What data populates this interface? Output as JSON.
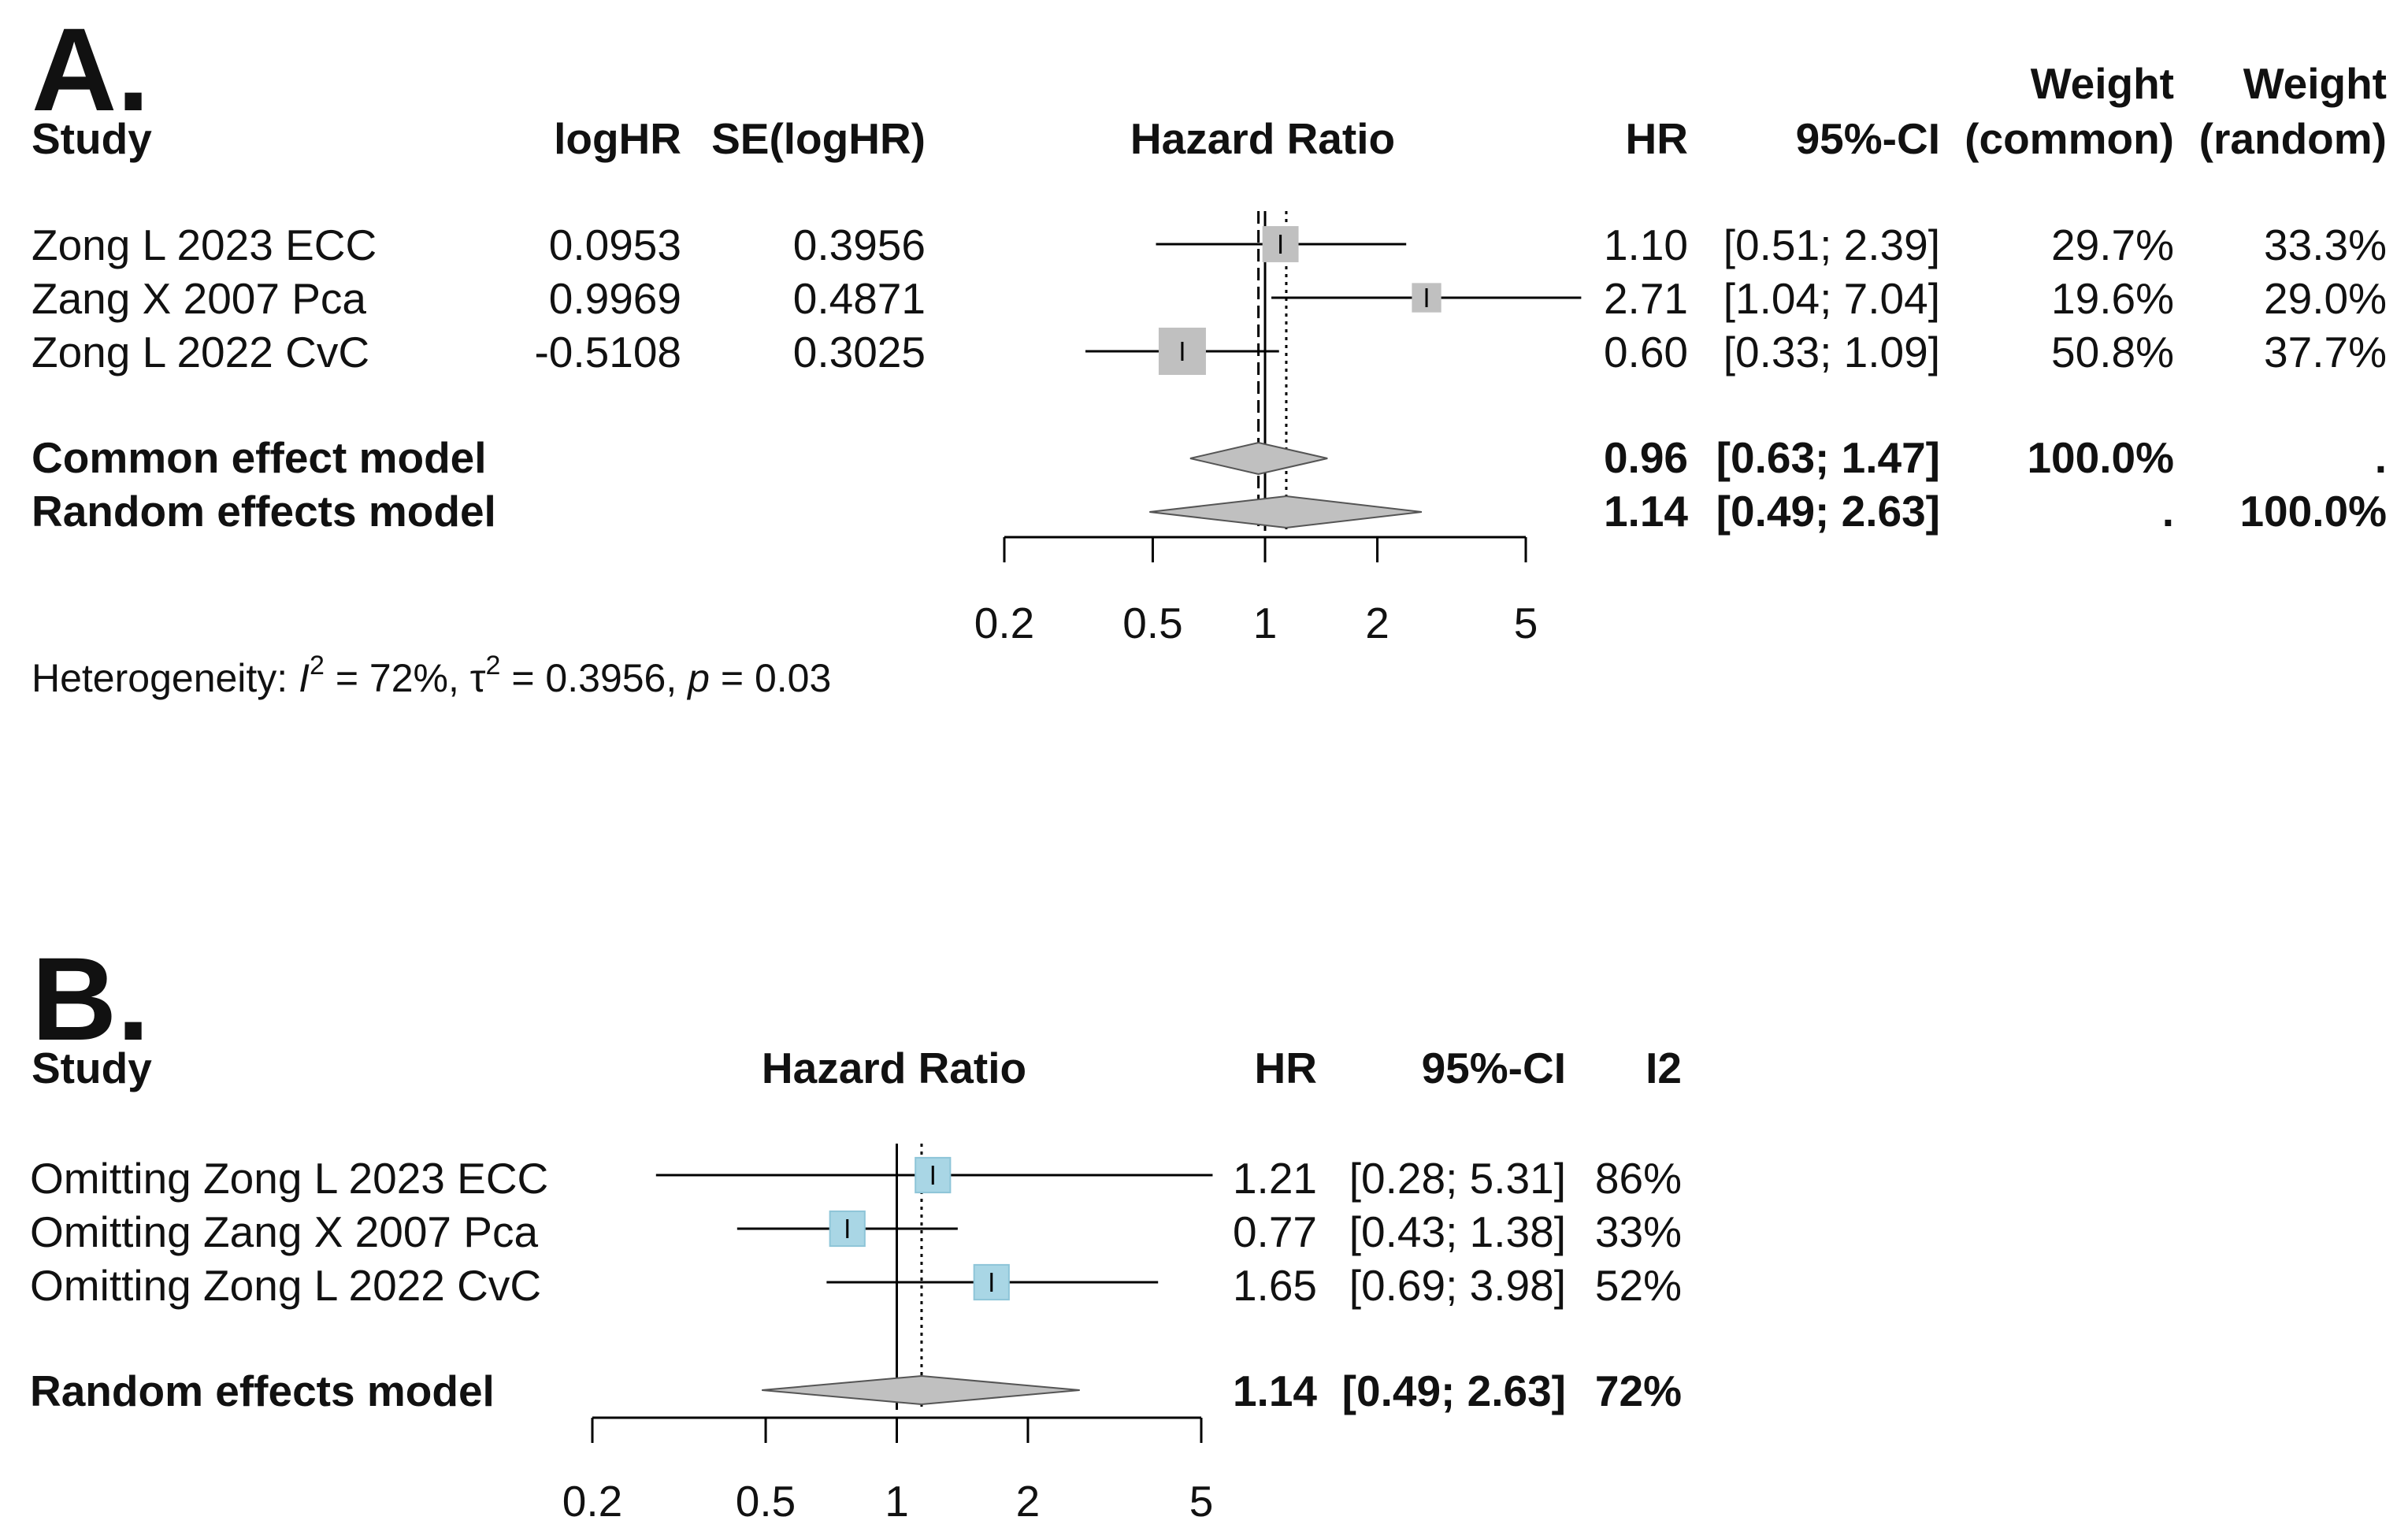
{
  "chart_data": [
    {
      "type": "forest",
      "panel_label": "A.",
      "headers": {
        "study": "Study",
        "loghr": "logHR",
        "se": "SE(logHR)",
        "plot": "Hazard Ratio",
        "hr": "HR",
        "ci": "95%-CI",
        "w_common_1": "Weight",
        "w_common_2": "(common)",
        "w_random_1": "Weight",
        "w_random_2": "(random)"
      },
      "x_scale": "log",
      "xlim": [
        0.2,
        5
      ],
      "ticks": [
        {
          "value": 0.2,
          "label": "0.2"
        },
        {
          "value": 0.5,
          "label": "0.5"
        },
        {
          "value": 1,
          "label": "1"
        },
        {
          "value": 2,
          "label": "2"
        },
        {
          "value": 5,
          "label": "5"
        }
      ],
      "null_value": 1,
      "common_estimate": 0.96,
      "random_estimate": 1.14,
      "studies": [
        {
          "name": "Zong L 2023 ECC",
          "loghr": "0.0953",
          "se": "0.3956",
          "hr": 1.1,
          "lower": 0.51,
          "upper": 2.39,
          "hr_text": "1.10",
          "ci_text": "[0.51; 2.39]",
          "w_common": "29.7%",
          "w_random": "33.3%",
          "w_common_value": 29.7
        },
        {
          "name": "Zang X 2007 Pca",
          "loghr": "0.9969",
          "se": "0.4871",
          "hr": 2.71,
          "lower": 1.04,
          "upper": 7.04,
          "hr_text": "2.71",
          "ci_text": "[1.04; 7.04]",
          "w_common": "19.6%",
          "w_random": "29.0%",
          "w_common_value": 19.6
        },
        {
          "name": "Zong L 2022 CvC",
          "loghr": "-0.5108",
          "se": "0.3025",
          "hr": 0.6,
          "lower": 0.33,
          "upper": 1.09,
          "hr_text": "0.60",
          "ci_text": "[0.33; 1.09]",
          "w_common": "50.8%",
          "w_random": "37.7%",
          "w_common_value": 50.8
        }
      ],
      "summaries": [
        {
          "name": "Common effect model",
          "hr": 0.96,
          "lower": 0.63,
          "upper": 1.47,
          "hr_text": "0.96",
          "ci_text": "[0.63; 1.47]",
          "w_common": "100.0%",
          "w_random": "."
        },
        {
          "name": "Random effects model",
          "hr": 1.14,
          "lower": 0.49,
          "upper": 2.63,
          "hr_text": "1.14",
          "ci_text": "[0.49; 2.63]",
          "w_common": ".",
          "w_random": "100.0%"
        }
      ],
      "heterogeneity": {
        "prefix": "Heterogeneity: ",
        "i2_symbol": "I",
        "i2_sup": "2",
        "i2_value": " = 72%, ",
        "tau_symbol": "τ",
        "tau_sup": "2",
        "tau_value": " = 0.3956, ",
        "p_symbol": "p",
        "p_value": " = 0.03"
      },
      "colors": {
        "box": "#c0c0c0",
        "diamond": "#c0c0c0",
        "line": "#000000"
      }
    },
    {
      "type": "forest",
      "panel_label": "B.",
      "headers": {
        "study": "Study",
        "plot": "Hazard Ratio",
        "hr": "HR",
        "ci": "95%-CI",
        "i2": "I2"
      },
      "x_scale": "log",
      "xlim": [
        0.2,
        5
      ],
      "ticks": [
        {
          "value": 0.2,
          "label": "0.2"
        },
        {
          "value": 0.5,
          "label": "0.5"
        },
        {
          "value": 1,
          "label": "1"
        },
        {
          "value": 2,
          "label": "2"
        },
        {
          "value": 5,
          "label": "5"
        }
      ],
      "null_value": 1,
      "random_estimate": 1.14,
      "studies": [
        {
          "name": "Omitting Zong L 2023 ECC",
          "hr": 1.21,
          "lower": 0.28,
          "upper": 5.31,
          "hr_text": "1.21",
          "ci_text": "[0.28; 5.31]",
          "i2": "86%"
        },
        {
          "name": "Omitting Zang X 2007 Pca",
          "hr": 0.77,
          "lower": 0.43,
          "upper": 1.38,
          "hr_text": "0.77",
          "ci_text": "[0.43; 1.38]",
          "i2": "33%"
        },
        {
          "name": "Omitting Zong L 2022 CvC",
          "hr": 1.65,
          "lower": 0.69,
          "upper": 3.98,
          "hr_text": "1.65",
          "ci_text": "[0.69; 3.98]",
          "i2": "52%"
        }
      ],
      "summaries": [
        {
          "name": "Random effects model",
          "hr": 1.14,
          "lower": 0.49,
          "upper": 2.63,
          "hr_text": "1.14",
          "ci_text": "[0.49; 2.63]",
          "i2": "72%"
        }
      ],
      "colors": {
        "box": "#a9d6e5",
        "box_stroke": "#8ec5d8",
        "diamond": "#c0c0c0",
        "line": "#000000"
      }
    }
  ]
}
